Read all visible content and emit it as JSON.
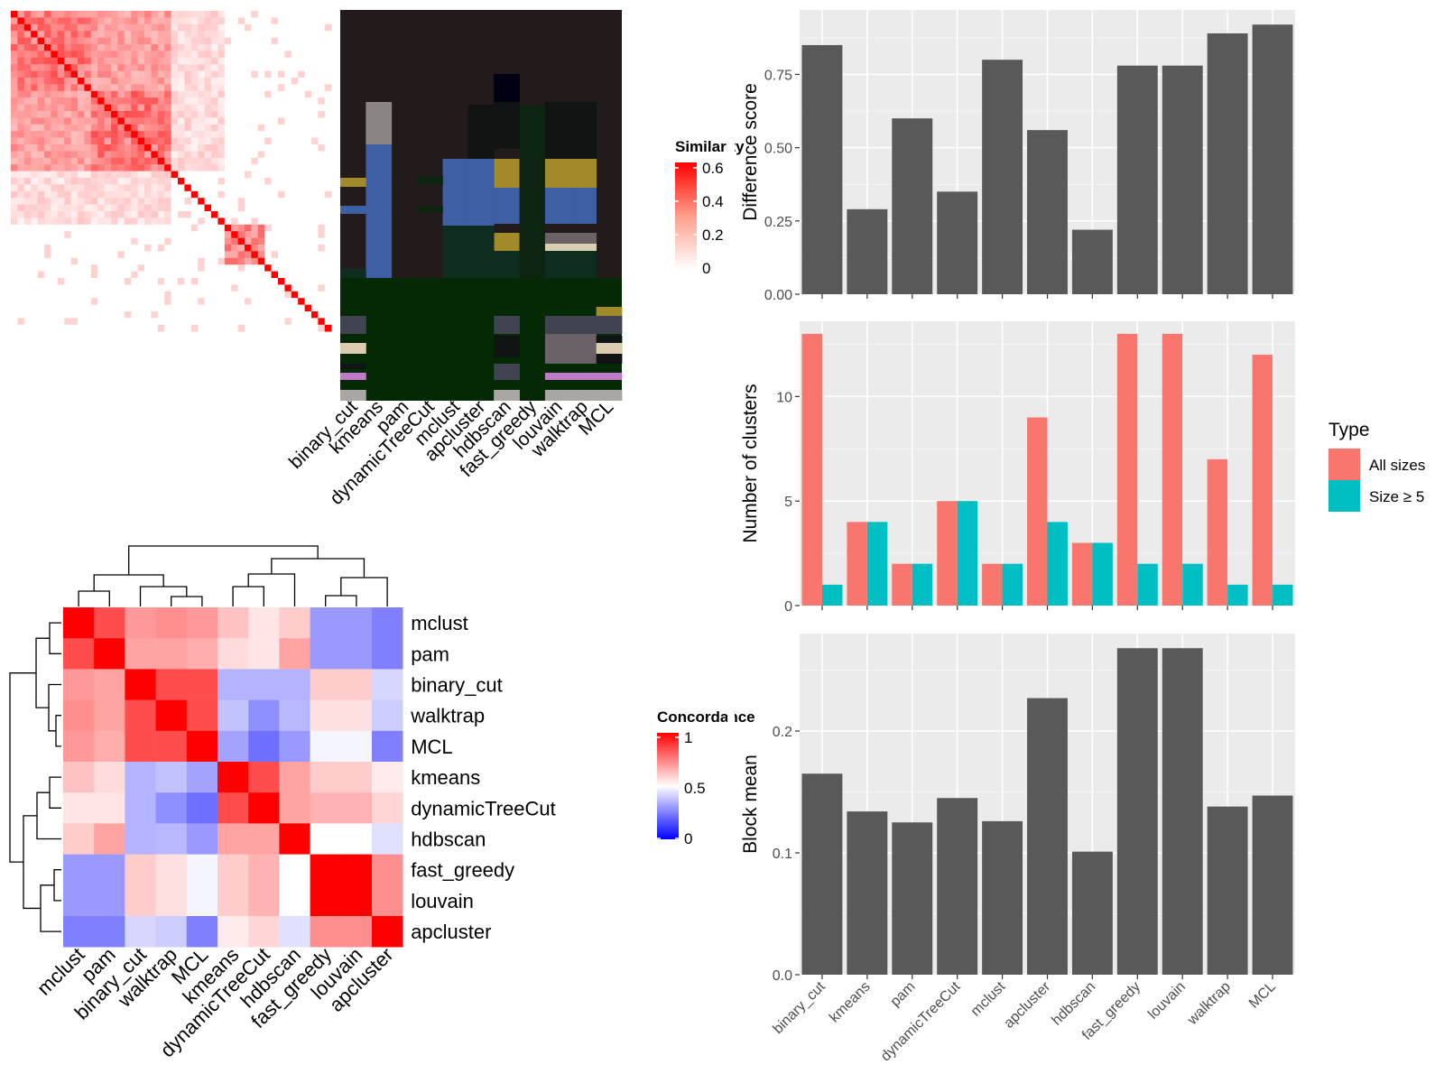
{
  "colors": {
    "panel_bg": "#ebebeb",
    "bar_dark": "#595959",
    "all_sizes": "#f8766d",
    "size_ge5": "#00bfc4",
    "heat_high": "#ff0000",
    "heat_low": "#ffffff",
    "conc_low": "#0000ff",
    "dark_bg": "#231a1c",
    "dark_green": "#062905"
  },
  "similarity_heatmap": {
    "legend_title": "Similarity",
    "legend_ticks": [
      "0.6",
      "0.4",
      "0.2",
      "0"
    ],
    "legend_range": [
      0,
      0.6
    ]
  },
  "methods_heatmap": {
    "column_labels": [
      "binary_cut",
      "kmeans",
      "pam",
      "dynamicTreeCut",
      "mclust",
      "apcluster",
      "hdbscan",
      "fast_greedy",
      "louvain",
      "walktrap",
      "MCL"
    ]
  },
  "concordance": {
    "legend_title": "Concordance",
    "legend_ticks": [
      "1",
      "0.5",
      "0"
    ]
  },
  "chart_data": [
    {
      "id": "concordance",
      "type": "heatmap",
      "rows": [
        "mclust",
        "pam",
        "binary_cut",
        "walktrap",
        "MCL",
        "kmeans",
        "dynamicTreeCut",
        "hdbscan",
        "fast_greedy",
        "louvain",
        "apcluster"
      ],
      "columns": [
        "mclust",
        "pam",
        "binary_cut",
        "walktrap",
        "MCL",
        "kmeans",
        "dynamicTreeCut",
        "hdbscan",
        "fast_greedy",
        "louvain",
        "apcluster"
      ],
      "values": [
        [
          1.0,
          0.85,
          0.7,
          0.72,
          0.7,
          0.62,
          0.55,
          0.6,
          0.3,
          0.3,
          0.25
        ],
        [
          0.85,
          1.0,
          0.68,
          0.68,
          0.66,
          0.57,
          0.55,
          0.68,
          0.3,
          0.3,
          0.25
        ],
        [
          0.7,
          0.68,
          1.0,
          0.85,
          0.85,
          0.35,
          0.35,
          0.35,
          0.6,
          0.6,
          0.42
        ],
        [
          0.72,
          0.68,
          0.85,
          1.0,
          0.85,
          0.38,
          0.28,
          0.36,
          0.56,
          0.56,
          0.4
        ],
        [
          0.7,
          0.66,
          0.85,
          0.85,
          1.0,
          0.32,
          0.22,
          0.3,
          0.48,
          0.48,
          0.25
        ],
        [
          0.62,
          0.57,
          0.35,
          0.38,
          0.32,
          1.0,
          0.85,
          0.68,
          0.6,
          0.6,
          0.54
        ],
        [
          0.55,
          0.55,
          0.35,
          0.28,
          0.22,
          0.85,
          1.0,
          0.68,
          0.65,
          0.65,
          0.58
        ],
        [
          0.6,
          0.68,
          0.35,
          0.36,
          0.3,
          0.68,
          0.68,
          1.0,
          0.5,
          0.5,
          0.44
        ],
        [
          0.3,
          0.3,
          0.6,
          0.56,
          0.48,
          0.6,
          0.65,
          0.5,
          1.0,
          1.0,
          0.72
        ],
        [
          0.3,
          0.3,
          0.6,
          0.56,
          0.48,
          0.6,
          0.65,
          0.5,
          1.0,
          1.0,
          0.72
        ],
        [
          0.25,
          0.25,
          0.42,
          0.4,
          0.25,
          0.54,
          0.58,
          0.44,
          0.72,
          0.72,
          1.0
        ]
      ]
    },
    {
      "id": "difference",
      "type": "bar",
      "categories": [
        "binary_cut",
        "kmeans",
        "pam",
        "dynamicTreeCut",
        "mclust",
        "apcluster",
        "hdbscan",
        "fast_greedy",
        "louvain",
        "walktrap",
        "MCL"
      ],
      "values": [
        0.85,
        0.29,
        0.6,
        0.35,
        0.8,
        0.56,
        0.22,
        0.78,
        0.78,
        0.89,
        0.92
      ],
      "ylabel": "Difference score",
      "yticks": [
        "0.00",
        "0.25",
        "0.50",
        "0.75"
      ],
      "ylim": [
        0,
        0.97
      ]
    },
    {
      "id": "clusters",
      "type": "bar",
      "categories": [
        "binary_cut",
        "kmeans",
        "pam",
        "dynamicTreeCut",
        "mclust",
        "apcluster",
        "hdbscan",
        "fast_greedy",
        "louvain",
        "walktrap",
        "MCL"
      ],
      "series": [
        {
          "name": "All sizes",
          "values": [
            13,
            4,
            2,
            5,
            2,
            9,
            3,
            13,
            13,
            7,
            12
          ]
        },
        {
          "name": "Size ≥ 5",
          "values": [
            1,
            4,
            2,
            5,
            2,
            4,
            3,
            2,
            2,
            1,
            1
          ]
        }
      ],
      "ylabel": "Number of clusters",
      "yticks": [
        "0",
        "5",
        "10"
      ],
      "ylim": [
        0,
        13.6
      ],
      "legend_title": "Type",
      "legend_position": "right"
    },
    {
      "id": "blockmean",
      "type": "bar",
      "categories": [
        "binary_cut",
        "kmeans",
        "pam",
        "dynamicTreeCut",
        "mclust",
        "apcluster",
        "hdbscan",
        "fast_greedy",
        "louvain",
        "walktrap",
        "MCL"
      ],
      "values": [
        0.165,
        0.134,
        0.125,
        0.145,
        0.126,
        0.227,
        0.101,
        0.268,
        0.268,
        0.138,
        0.147
      ],
      "ylabel": "Block mean",
      "yticks": [
        "0.0",
        "0.1",
        "0.2"
      ],
      "ylim": [
        0,
        0.28
      ]
    }
  ]
}
